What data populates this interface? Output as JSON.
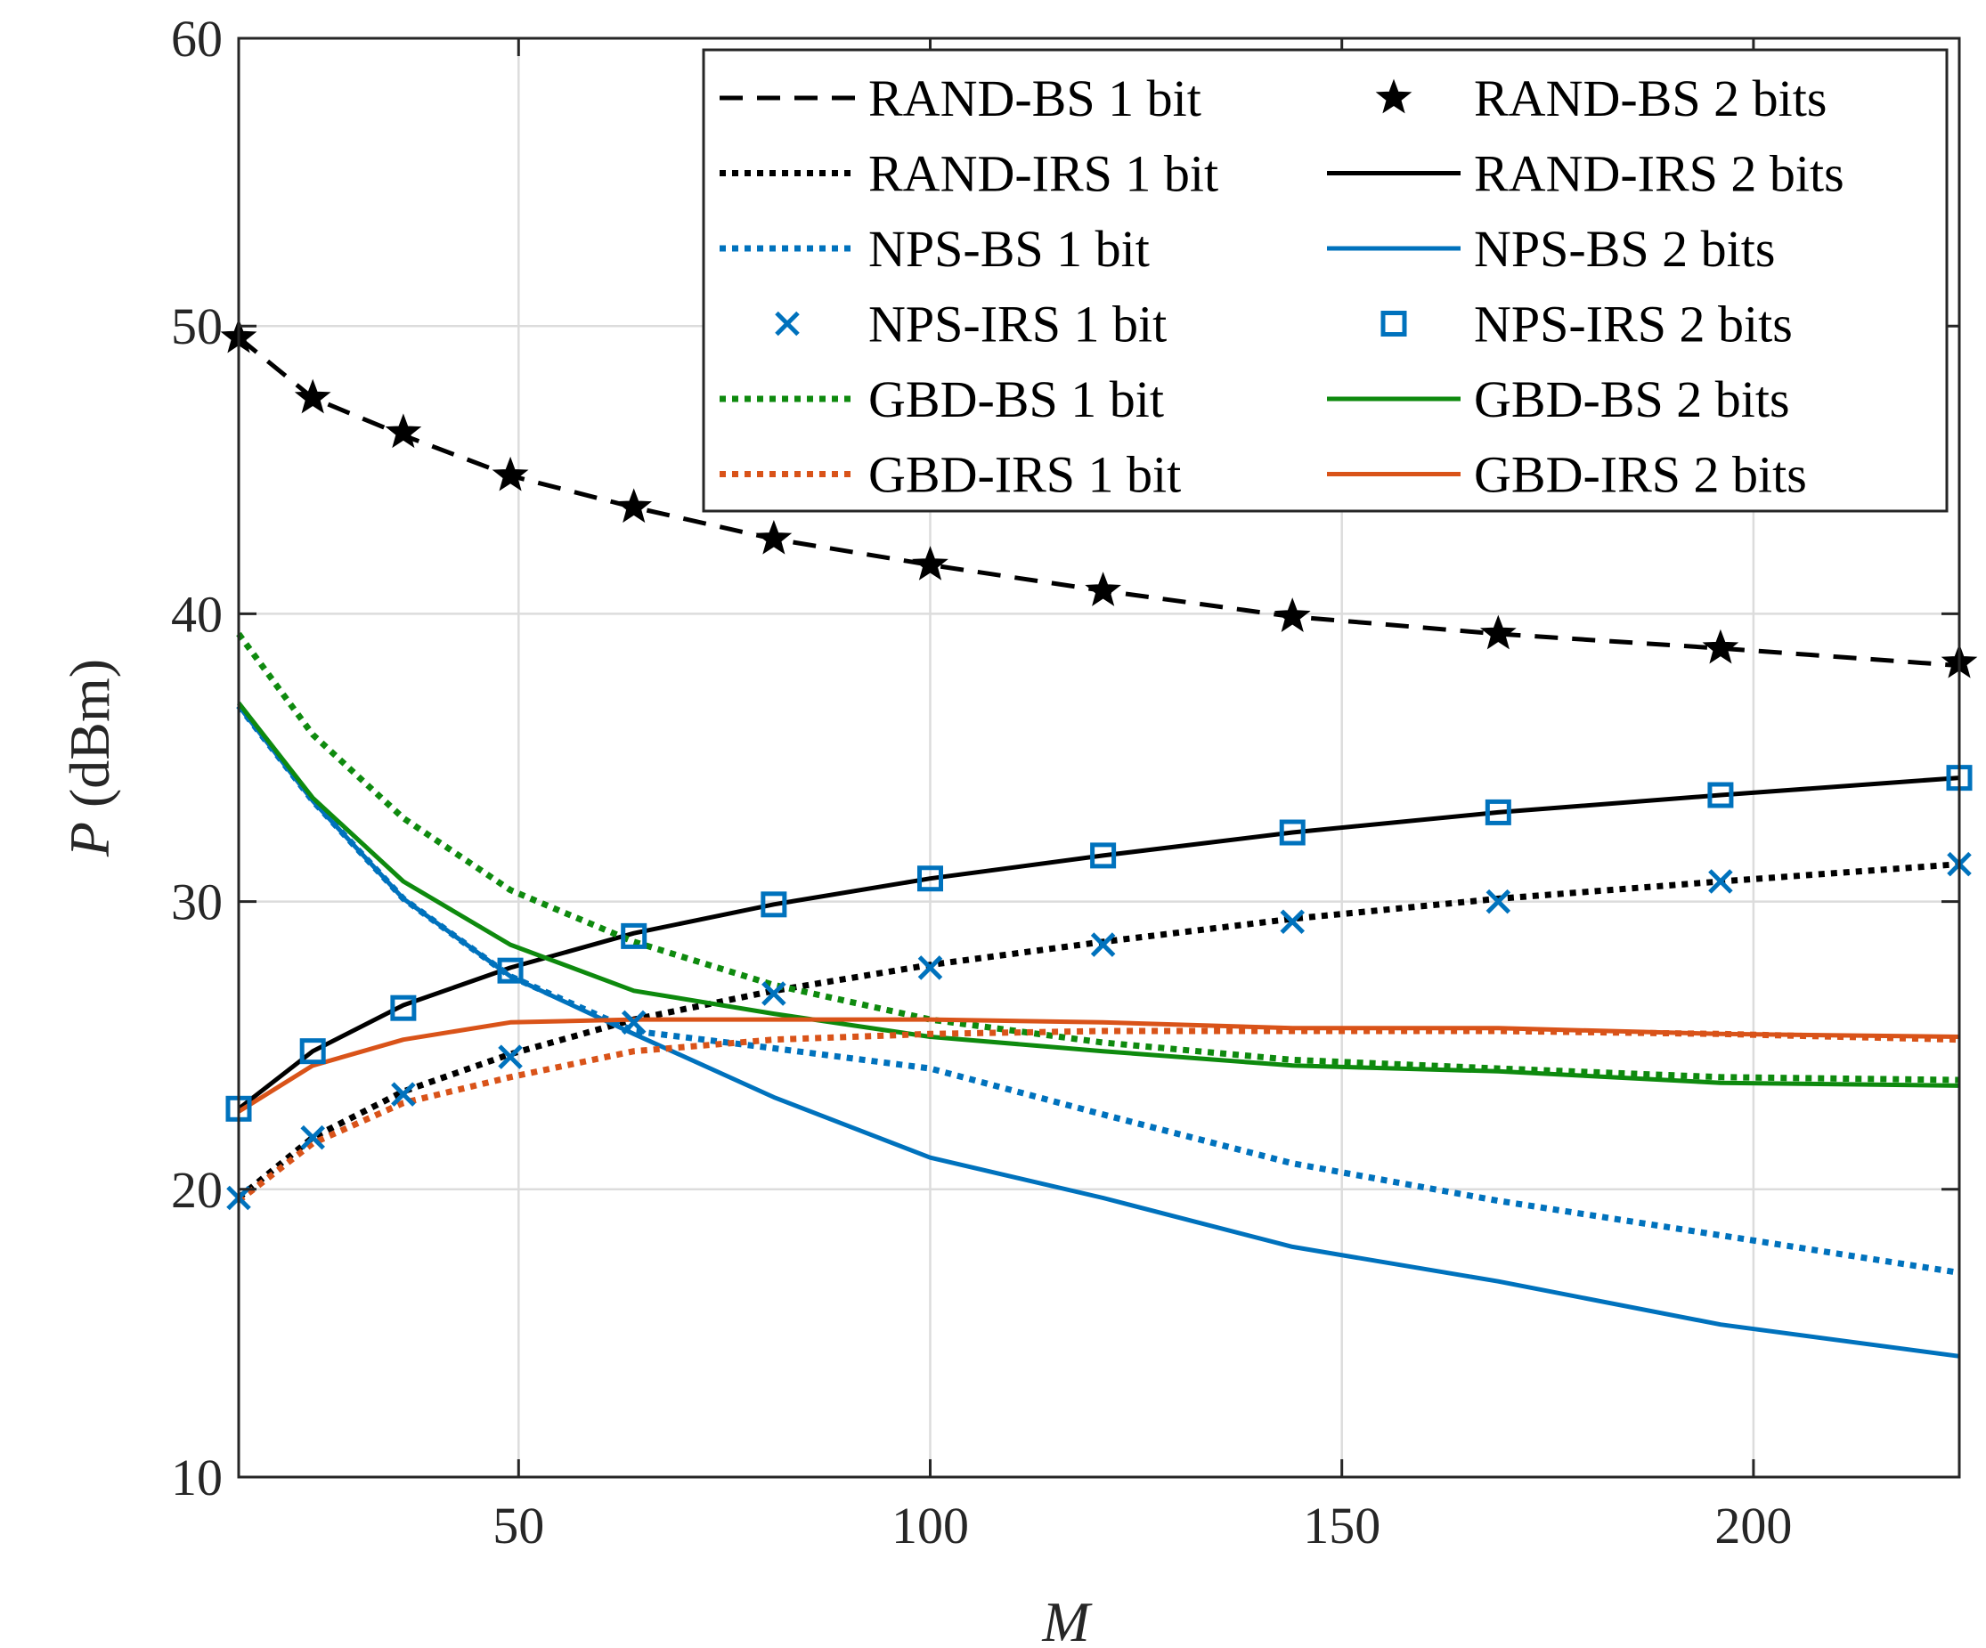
{
  "chart_data": {
    "type": "line",
    "title": "",
    "xlabel": "M",
    "ylabel_var": "P",
    "ylabel_unit": " (dBm)",
    "xlim": [
      16,
      225
    ],
    "ylim": [
      10,
      60
    ],
    "xticks": [
      50,
      100,
      150,
      200
    ],
    "yticks": [
      10,
      20,
      30,
      40,
      50,
      60
    ],
    "grid": true,
    "legend_position": "top-right",
    "x": [
      16,
      25,
      36,
      49,
      64,
      81,
      100,
      121,
      144,
      169,
      196,
      225
    ],
    "series": [
      {
        "name": "RAND-BS 1 bit",
        "color": "#000000",
        "line": "dashed",
        "marker": "none",
        "values": [
          49.6,
          47.5,
          46.2,
          44.8,
          43.7,
          42.6,
          41.7,
          40.8,
          39.9,
          39.3,
          38.8,
          38.2
        ]
      },
      {
        "name": "RAND-BS 2 bits",
        "color": "#000000",
        "line": "none",
        "marker": "star",
        "values": [
          49.6,
          47.5,
          46.3,
          44.8,
          43.7,
          42.6,
          41.7,
          40.8,
          39.9,
          39.3,
          38.8,
          38.3
        ]
      },
      {
        "name": "RAND-IRS 1 bit",
        "color": "#000000",
        "line": "dotted",
        "marker": "none",
        "values": [
          19.7,
          21.8,
          23.4,
          24.7,
          25.9,
          26.9,
          27.8,
          28.6,
          29.4,
          30.1,
          30.7,
          31.3
        ]
      },
      {
        "name": "RAND-IRS 2 bits",
        "color": "#000000",
        "line": "solid",
        "marker": "none",
        "values": [
          22.8,
          24.8,
          26.4,
          27.7,
          28.9,
          29.9,
          30.8,
          31.6,
          32.4,
          33.1,
          33.7,
          34.3
        ]
      },
      {
        "name": "NPS-BS 1 bit",
        "color": "#0072BD",
        "line": "dotted",
        "marker": "none",
        "values": [
          36.8,
          33.5,
          30.1,
          27.4,
          25.5,
          24.9,
          24.2,
          22.6,
          20.9,
          19.6,
          18.4,
          17.1
        ]
      },
      {
        "name": "NPS-BS 2 bits",
        "color": "#0072BD",
        "line": "solid",
        "marker": "none",
        "values": [
          36.8,
          33.5,
          30.1,
          27.4,
          25.4,
          23.2,
          21.1,
          19.7,
          18.0,
          16.8,
          15.3,
          14.2
        ]
      },
      {
        "name": "NPS-IRS 1 bit",
        "color": "#0072BD",
        "line": "none",
        "marker": "x",
        "values": [
          19.7,
          21.8,
          23.3,
          24.6,
          25.8,
          26.8,
          27.7,
          28.5,
          29.3,
          30.0,
          30.7,
          31.3
        ]
      },
      {
        "name": "NPS-IRS 2 bits",
        "color": "#0072BD",
        "line": "none",
        "marker": "square",
        "values": [
          22.8,
          24.8,
          26.3,
          27.6,
          28.8,
          29.9,
          30.8,
          31.6,
          32.4,
          33.1,
          33.7,
          34.3
        ]
      },
      {
        "name": "GBD-BS 1 bit",
        "color": "#0E8A0E",
        "line": "dotted",
        "marker": "none",
        "values": [
          39.3,
          35.8,
          32.9,
          30.4,
          28.6,
          27.1,
          25.9,
          25.1,
          24.5,
          24.2,
          23.9,
          23.8
        ]
      },
      {
        "name": "GBD-BS 2 bits",
        "color": "#0E8A0E",
        "line": "solid",
        "marker": "none",
        "values": [
          36.9,
          33.6,
          30.7,
          28.5,
          26.9,
          26.1,
          25.3,
          24.8,
          24.3,
          24.1,
          23.7,
          23.6
        ]
      },
      {
        "name": "GBD-IRS 1 bit",
        "color": "#D95319",
        "line": "dotted",
        "marker": "none",
        "values": [
          19.6,
          21.6,
          23.0,
          23.9,
          24.8,
          25.2,
          25.4,
          25.5,
          25.5,
          25.5,
          25.4,
          25.2
        ]
      },
      {
        "name": "GBD-IRS 2 bits",
        "color": "#D95319",
        "line": "solid",
        "marker": "none",
        "values": [
          22.7,
          24.3,
          25.2,
          25.8,
          25.9,
          25.9,
          25.9,
          25.8,
          25.6,
          25.6,
          25.4,
          25.3
        ]
      }
    ]
  }
}
